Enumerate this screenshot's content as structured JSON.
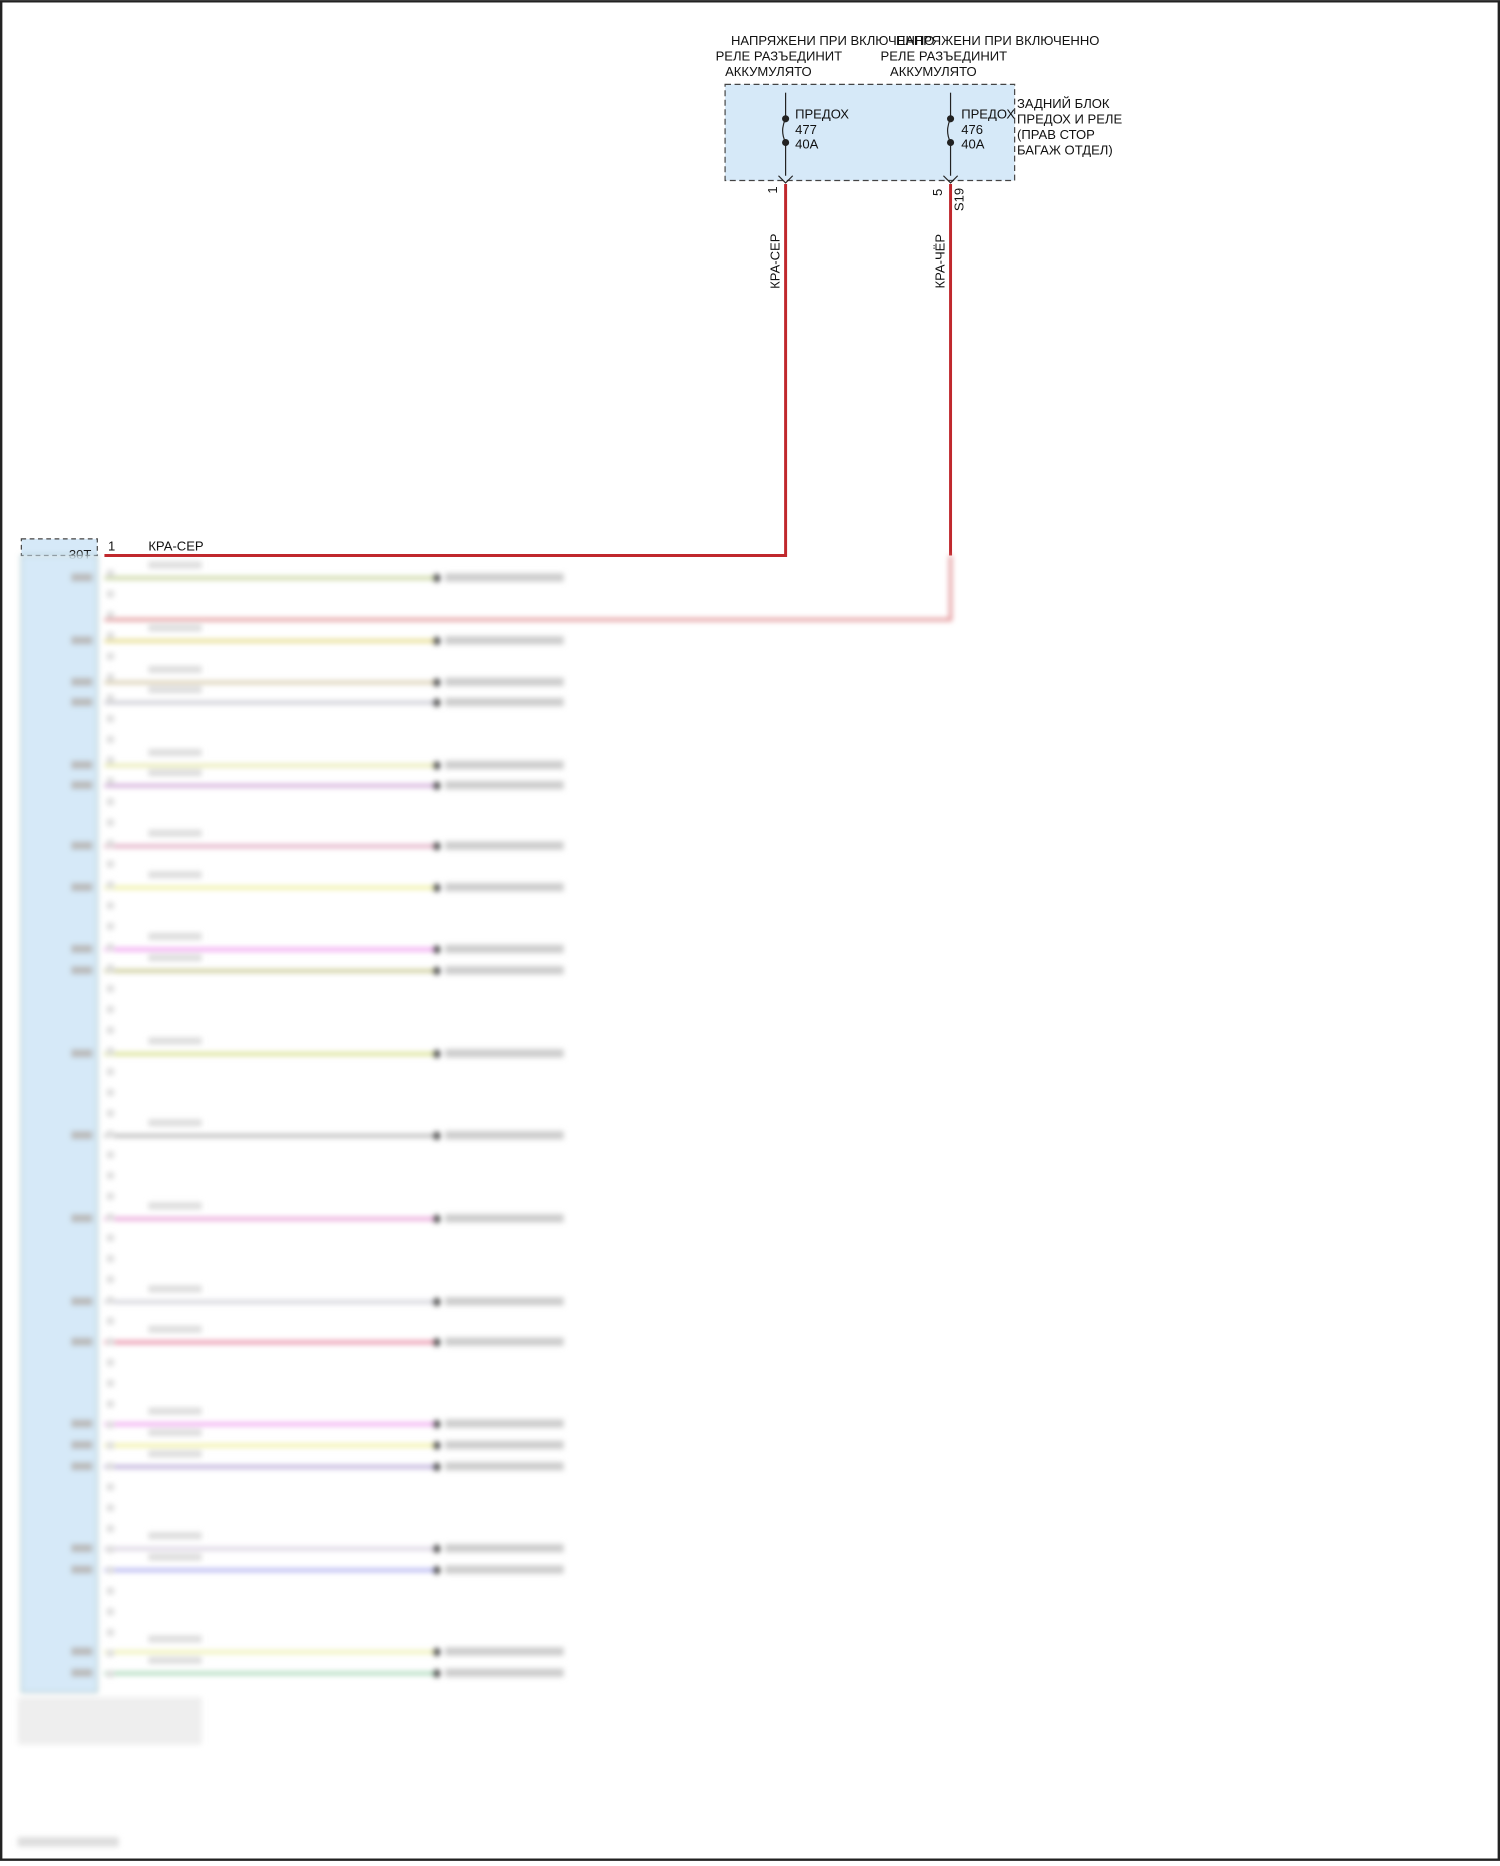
{
  "supply_labels": [
    {
      "lines": [
        "НАПРЯЖЕНИ ПРИ ВКЛЮЧЕННО",
        "РЕЛЕ РАЗЪЕДИНИТ",
        "АККУМУЛЯТО"
      ]
    },
    {
      "lines": [
        "НАПРЯЖЕНИ ПРИ ВКЛЮЧЕННО",
        "РЕЛЕ РАЗЪЕДИНИТ",
        "АККУМУЛЯТО"
      ]
    }
  ],
  "fuse_block": {
    "label_lines": [
      "ЗАДНИЙ БЛОК",
      "ПРЕДОХ И РЕЛЕ",
      "(ПРАВ СТОР",
      "БАГАЖ ОТДЕЛ)"
    ]
  },
  "fuses": [
    {
      "name": "ПРЕДОХ",
      "number": "477",
      "rating": "40A",
      "pin": "1",
      "wire": "КРА-СЕР"
    },
    {
      "name": "ПРЕДОХ",
      "number": "476",
      "rating": "40A",
      "pin": "5",
      "splice": "S19",
      "wire": "КРА-ЧЁР"
    }
  ],
  "connector": {
    "name": "30T",
    "pin": "1",
    "wire": "КРА-СЕР"
  }
}
